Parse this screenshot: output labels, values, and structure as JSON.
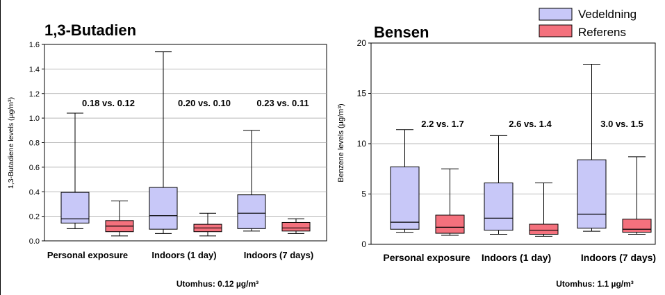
{
  "legend": {
    "items": [
      {
        "label": "Vedeldning",
        "color": "#c8c8f8"
      },
      {
        "label": "Referens",
        "color": "#f4717d"
      }
    ]
  },
  "chart_data": [
    {
      "type": "boxplot",
      "title": "1,3-Butadien",
      "ylabel": "1,3-Butadiene levels (µg/m³)",
      "ylim": [
        0,
        1.6
      ],
      "yticks": [
        "0.0",
        "0.2",
        "0.4",
        "0.6",
        "0.8",
        "1.0",
        "1.2",
        "1.4",
        "1.6"
      ],
      "ytick_values": [
        0,
        0.2,
        0.4,
        0.6,
        0.8,
        1.0,
        1.2,
        1.4,
        1.6
      ],
      "grid": true,
      "categories": [
        "Personal exposure",
        "Indoors (1 day)",
        "Indoors (7 days)"
      ],
      "series": [
        {
          "name": "Vedeldning",
          "color": "#c8c8f8",
          "boxes": [
            {
              "min": 0.1,
              "q1": 0.145,
              "median": 0.18,
              "q3": 0.395,
              "max": 1.04
            },
            {
              "min": 0.06,
              "q1": 0.095,
              "median": 0.205,
              "q3": 0.435,
              "max": 1.54
            },
            {
              "min": 0.08,
              "q1": 0.1,
              "median": 0.225,
              "q3": 0.375,
              "max": 0.9
            }
          ]
        },
        {
          "name": "Referens",
          "color": "#f4717d",
          "boxes": [
            {
              "min": 0.04,
              "q1": 0.075,
              "median": 0.12,
              "q3": 0.165,
              "max": 0.325
            },
            {
              "min": 0.04,
              "q1": 0.075,
              "median": 0.105,
              "q3": 0.135,
              "max": 0.225
            },
            {
              "min": 0.06,
              "q1": 0.08,
              "median": 0.105,
              "q3": 0.15,
              "max": 0.18
            }
          ]
        }
      ],
      "annotations": [
        "0.18 vs. 0.12",
        "0.20 vs. 0.10",
        "0.23 vs. 0.11"
      ],
      "footnote": "Utomhus: 0.12 µg/m³"
    },
    {
      "type": "boxplot",
      "title": "Bensen",
      "ylabel": "Benzene levels (µg/m³)",
      "ylim": [
        0,
        20
      ],
      "yticks": [
        "0",
        "5",
        "10",
        "15",
        "20"
      ],
      "ytick_values": [
        0,
        5,
        10,
        15,
        20
      ],
      "grid": true,
      "categories": [
        "Personal exposure",
        "Indoors (1 day)",
        "Indoors (7 days)"
      ],
      "series": [
        {
          "name": "Vedeldning",
          "color": "#c8c8f8",
          "boxes": [
            {
              "min": 1.2,
              "q1": 1.5,
              "median": 2.2,
              "q3": 7.7,
              "max": 11.4
            },
            {
              "min": 1.0,
              "q1": 1.4,
              "median": 2.6,
              "q3": 6.1,
              "max": 10.8
            },
            {
              "min": 1.3,
              "q1": 1.6,
              "median": 3.0,
              "q3": 8.4,
              "max": 17.9
            }
          ]
        },
        {
          "name": "Referens",
          "color": "#f4717d",
          "boxes": [
            {
              "min": 0.9,
              "q1": 1.1,
              "median": 1.7,
              "q3": 2.9,
              "max": 7.5
            },
            {
              "min": 0.8,
              "q1": 1.0,
              "median": 1.4,
              "q3": 2.0,
              "max": 6.1
            },
            {
              "min": 1.0,
              "q1": 1.2,
              "median": 1.5,
              "q3": 2.5,
              "max": 8.7
            }
          ]
        }
      ],
      "annotations": [
        "2.2 vs. 1.7",
        "2.6 vs. 1.4",
        "3.0 vs. 1.5"
      ],
      "footnote": "Utomhus: 1.1 µg/m³"
    }
  ]
}
